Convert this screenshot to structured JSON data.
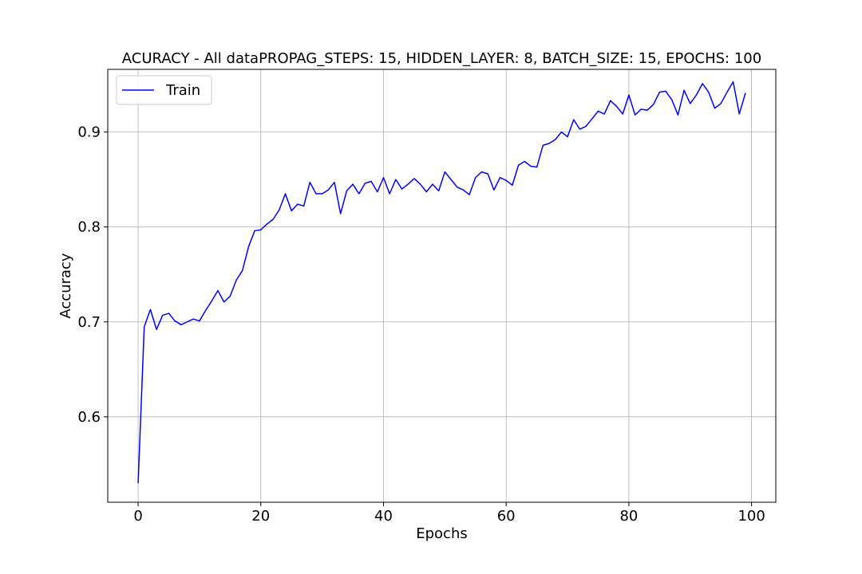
{
  "chart_data": {
    "type": "line",
    "title": "ACURACY - All dataPROPAG_STEPS: 15, HIDDEN_LAYER: 8, BATCH_SIZE: 15, EPOCHS: 100",
    "xlabel": "Epochs",
    "ylabel": "Accuracy",
    "xlim": [
      -4.95,
      103.95
    ],
    "ylim": [
      0.51,
      0.966
    ],
    "xticks": [
      0,
      20,
      40,
      60,
      80,
      100
    ],
    "yticks": [
      0.6,
      0.7,
      0.8,
      0.9
    ],
    "xtick_labels": [
      "0",
      "20",
      "40",
      "60",
      "80",
      "100"
    ],
    "ytick_labels": [
      "0.6",
      "0.7",
      "0.8",
      "0.9"
    ],
    "grid": true,
    "legend_position": "top-left",
    "x": [
      0,
      1,
      2,
      3,
      4,
      5,
      6,
      7,
      8,
      9,
      10,
      11,
      12,
      13,
      14,
      15,
      16,
      17,
      18,
      19,
      20,
      21,
      22,
      23,
      24,
      25,
      26,
      27,
      28,
      29,
      30,
      31,
      32,
      33,
      34,
      35,
      36,
      37,
      38,
      39,
      40,
      41,
      42,
      43,
      44,
      45,
      46,
      47,
      48,
      49,
      50,
      51,
      52,
      53,
      54,
      55,
      56,
      57,
      58,
      59,
      60,
      61,
      62,
      63,
      64,
      65,
      66,
      67,
      68,
      69,
      70,
      71,
      72,
      73,
      74,
      75,
      76,
      77,
      78,
      79,
      80,
      81,
      82,
      83,
      84,
      85,
      86,
      87,
      88,
      89,
      90,
      91,
      92,
      93,
      94,
      95,
      96,
      97,
      98,
      99
    ],
    "series": [
      {
        "name": "Train",
        "color": "#0000ff",
        "values": [
          0.53,
          0.695,
          0.713,
          0.692,
          0.707,
          0.709,
          0.701,
          0.697,
          0.7,
          0.703,
          0.701,
          0.712,
          0.722,
          0.733,
          0.721,
          0.727,
          0.744,
          0.754,
          0.779,
          0.796,
          0.797,
          0.803,
          0.808,
          0.818,
          0.835,
          0.817,
          0.824,
          0.822,
          0.847,
          0.835,
          0.835,
          0.839,
          0.847,
          0.814,
          0.838,
          0.845,
          0.835,
          0.846,
          0.848,
          0.837,
          0.852,
          0.835,
          0.85,
          0.84,
          0.845,
          0.851,
          0.845,
          0.837,
          0.845,
          0.838,
          0.858,
          0.85,
          0.842,
          0.839,
          0.834,
          0.852,
          0.858,
          0.856,
          0.839,
          0.852,
          0.849,
          0.844,
          0.865,
          0.869,
          0.864,
          0.863,
          0.886,
          0.888,
          0.892,
          0.9,
          0.895,
          0.913,
          0.903,
          0.906,
          0.914,
          0.922,
          0.919,
          0.933,
          0.927,
          0.919,
          0.939,
          0.918,
          0.924,
          0.923,
          0.929,
          0.942,
          0.943,
          0.934,
          0.918,
          0.944,
          0.93,
          0.939,
          0.951,
          0.942,
          0.925,
          0.93,
          0.942,
          0.953,
          0.919,
          0.941
        ]
      }
    ]
  }
}
